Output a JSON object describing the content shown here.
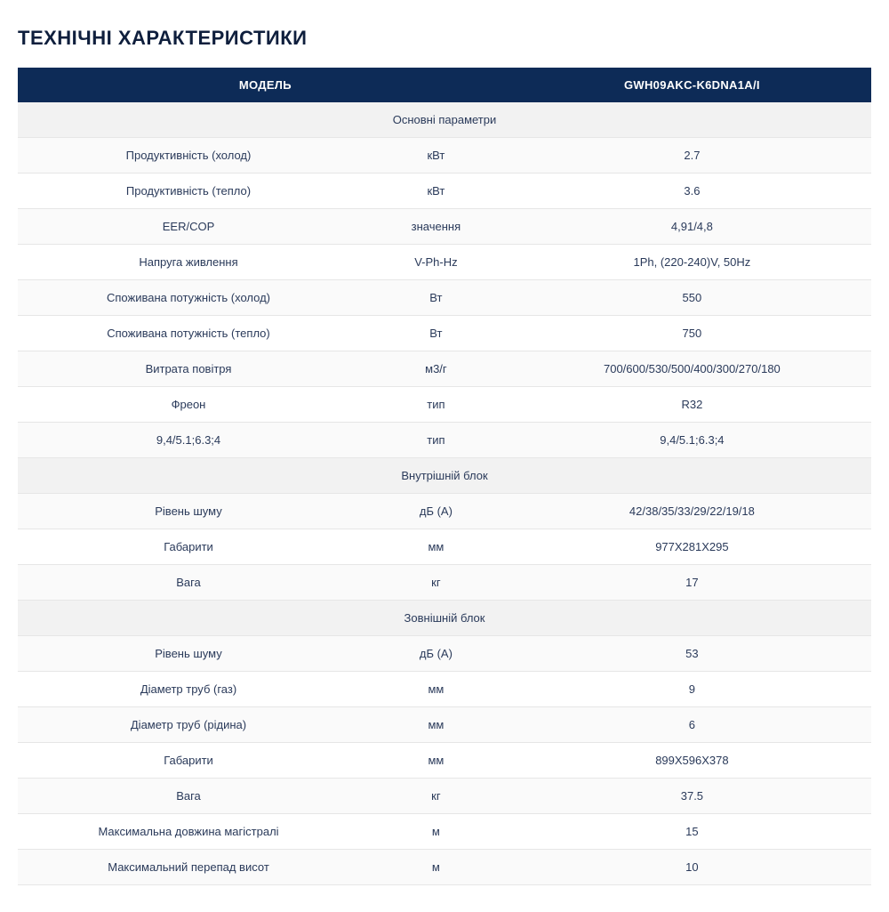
{
  "title": "ТЕХНІЧНІ ХАРАКТЕРИСТИКИ",
  "table": {
    "type": "table",
    "header_bg": "#0d2b57",
    "header_fg": "#ffffff",
    "border_color": "#e6e6e6",
    "section_bg": "#f2f2f2",
    "text_color": "#2a3a5a",
    "title_fontsize": 22,
    "cell_fontsize": 13,
    "columns": [
      {
        "key": "param",
        "label": "МОДЕЛЬ",
        "width_pct": 40,
        "align": "center"
      },
      {
        "key": "unit",
        "label": "",
        "width_pct": 18,
        "align": "center"
      },
      {
        "key": "value",
        "label": "GWH09AKC-K6DNA1A/I",
        "width_pct": 42,
        "align": "center"
      }
    ],
    "rows": [
      {
        "type": "section",
        "label": "Основні параметри"
      },
      {
        "type": "data",
        "param": "Продуктивність (холод)",
        "unit": "кВт",
        "value": "2.7"
      },
      {
        "type": "data",
        "param": "Продуктивність (тепло)",
        "unit": "кВт",
        "value": "3.6"
      },
      {
        "type": "data",
        "param": "EER/COP",
        "unit": "значення",
        "value": "4,91/4,8"
      },
      {
        "type": "data",
        "param": "Напруга живлення",
        "unit": "V-Ph-Hz",
        "value": "1Ph, (220-240)V, 50Hz"
      },
      {
        "type": "data",
        "param": "Споживана потужність (холод)",
        "unit": "Вт",
        "value": "550"
      },
      {
        "type": "data",
        "param": "Споживана потужність (тепло)",
        "unit": "Вт",
        "value": "750"
      },
      {
        "type": "data",
        "param": "Витрата повітря",
        "unit": "м3/г",
        "value": "700/600/530/500/400/300/270/180"
      },
      {
        "type": "data",
        "param": "Фреон",
        "unit": "тип",
        "value": "R32"
      },
      {
        "type": "data",
        "param": "9,4/5.1;6.3;4",
        "unit": "тип",
        "value": "9,4/5.1;6.3;4"
      },
      {
        "type": "section",
        "label": "Внутрішній блок"
      },
      {
        "type": "data",
        "param": "Рівень шуму",
        "unit": "дБ (А)",
        "value": "42/38/35/33/29/22/19/18"
      },
      {
        "type": "data",
        "param": "Габарити",
        "unit": "мм",
        "value": "977X281X295"
      },
      {
        "type": "data",
        "param": "Вага",
        "unit": "кг",
        "value": "17"
      },
      {
        "type": "section",
        "label": "Зовнішній блок"
      },
      {
        "type": "data",
        "param": "Рівень шуму",
        "unit": "дБ (А)",
        "value": "53"
      },
      {
        "type": "data",
        "param": "Діаметр труб (газ)",
        "unit": "мм",
        "value": "9"
      },
      {
        "type": "data",
        "param": "Діаметр труб (рідина)",
        "unit": "мм",
        "value": "6"
      },
      {
        "type": "data",
        "param": "Габарити",
        "unit": "мм",
        "value": "899X596X378"
      },
      {
        "type": "data",
        "param": "Вага",
        "unit": "кг",
        "value": "37.5"
      },
      {
        "type": "data",
        "param": "Максимальна довжина магістралі",
        "unit": "м",
        "value": "15"
      },
      {
        "type": "data",
        "param": "Максимальний перепад висот",
        "unit": "м",
        "value": "10"
      }
    ]
  }
}
